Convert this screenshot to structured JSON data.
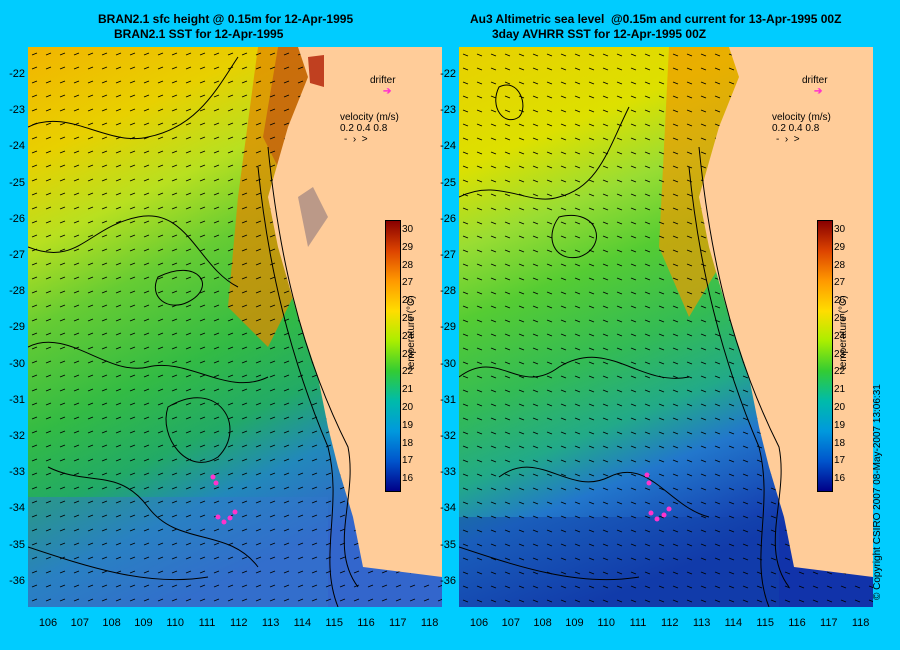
{
  "left_panel": {
    "title_line1": "BRAN2.1 sfc height @ 0.15m for 12-Apr-1995",
    "title_line2": "BRAN2.1 SST for 12-Apr-1995"
  },
  "right_panel": {
    "title_line1": "Au3 Altimetric sea level  @0.15m and current for 13-Apr-1995 00Z",
    "title_line2": "3day AVHRR SST for 12-Apr-1995 00Z"
  },
  "legend": {
    "drifter_label": "drifter",
    "velocity_label": "velocity (m/s)",
    "velocity_values": "0.2 0.4 0.8",
    "drifter_color": "#FF33CC"
  },
  "colorbar": {
    "label": "temperature (°C)",
    "ticks": [
      "30",
      "29",
      "28",
      "27",
      "26",
      "25",
      "24",
      "23",
      "22",
      "21",
      "20",
      "19",
      "18",
      "17",
      "16"
    ]
  },
  "axes": {
    "lat_labels": [
      "-22",
      "-23",
      "-24",
      "-25",
      "-26",
      "-27",
      "-28",
      "-29",
      "-30",
      "-31",
      "-32",
      "-33",
      "-34",
      "-35",
      "-36"
    ],
    "lon_labels": [
      "106",
      "107",
      "108",
      "109",
      "110",
      "111",
      "112",
      "113",
      "114",
      "115",
      "116",
      "117",
      "118"
    ]
  },
  "credit": "© Copyright CSIRO 2007   08-May-2007 13:06:31",
  "colors": {
    "background": "#00CCFF",
    "land": "#FFCC99"
  }
}
